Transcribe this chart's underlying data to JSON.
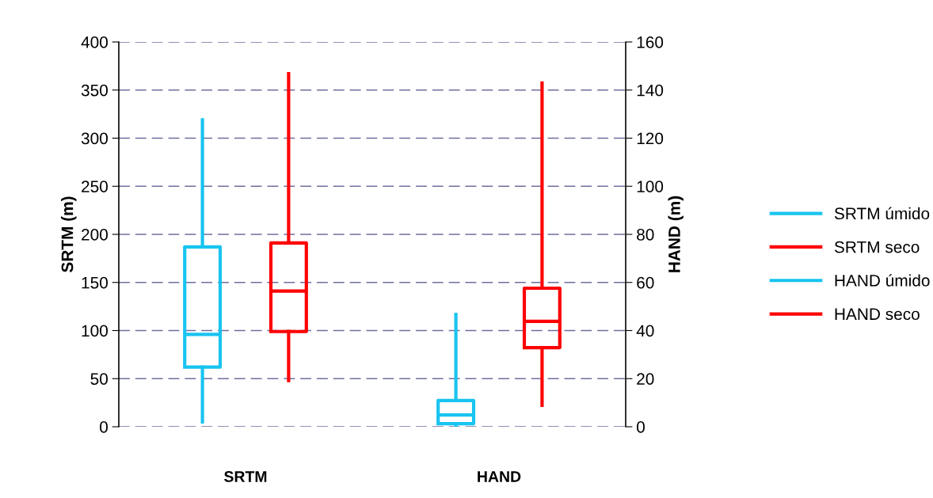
{
  "chart_data": {
    "type": "box",
    "categories": [
      "SRTM",
      "HAND"
    ],
    "ylabel": "SRTM (m)",
    "y2label": "HAND (m)",
    "ylim": [
      0,
      400
    ],
    "yticks": [
      0,
      50,
      100,
      150,
      200,
      250,
      300,
      350,
      400
    ],
    "y2lim": [
      0,
      160
    ],
    "y2ticks": [
      0,
      20,
      40,
      60,
      80,
      100,
      120,
      140,
      160
    ],
    "grid": "y",
    "legend": "right",
    "series": [
      {
        "name": "SRTM úmido",
        "color": "#18c4f0",
        "boxes": [
          {
            "low": 5,
            "q1": 62,
            "median": 96,
            "q3": 187,
            "high": 319
          },
          null
        ]
      },
      {
        "name": "SRTM seco",
        "color": "#ff0000",
        "boxes": [
          {
            "low": 48,
            "q1": 99,
            "median": 141,
            "q3": 191,
            "high": 367
          },
          null
        ]
      },
      {
        "name": "HAND úmido",
        "color": "#18c4f0",
        "axis": "y2",
        "boxes": [
          null,
          {
            "low": 0,
            "q1": 1.3,
            "median": 4.9,
            "q3": 10.9,
            "high": 46.7
          }
        ]
      },
      {
        "name": "HAND seco",
        "color": "#ff0000",
        "axis": "y2",
        "boxes": [
          null,
          {
            "low": 8.9,
            "q1": 32.9,
            "median": 43.8,
            "q3": 57.6,
            "high": 142.9
          }
        ]
      }
    ]
  }
}
